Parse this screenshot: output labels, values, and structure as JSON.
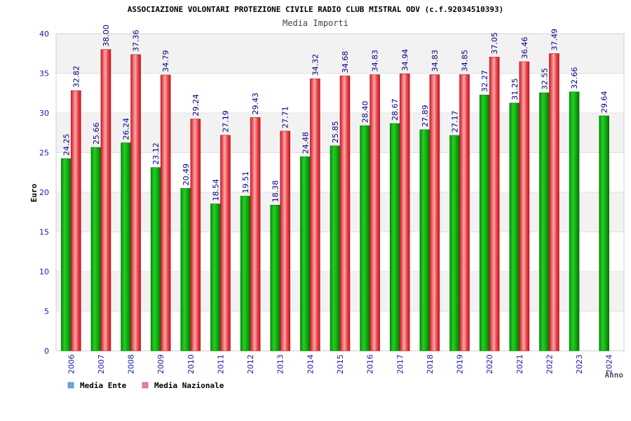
{
  "chart_data": {
    "type": "bar",
    "title": "ASSOCIAZIONE VOLONTARI PROTEZIONE CIVILE RADIO CLUB MISTRAL ODV (c.f.92034510393)",
    "subtitle": "Media Importi",
    "xlabel": "Anno",
    "ylabel": "Euro",
    "ylim": [
      0,
      40
    ],
    "yticks": [
      "0",
      "5",
      "10",
      "15",
      "20",
      "25",
      "30",
      "35",
      "40"
    ],
    "categories": [
      "2006",
      "2007",
      "2008",
      "2009",
      "2010",
      "2011",
      "2012",
      "2013",
      "2014",
      "2015",
      "2016",
      "2017",
      "2018",
      "2019",
      "2020",
      "2021",
      "2022",
      "2023",
      "2024"
    ],
    "series": [
      {
        "name": "Media Ente",
        "values": [
          24.25,
          25.66,
          26.24,
          23.12,
          20.49,
          18.54,
          19.51,
          18.38,
          24.48,
          25.85,
          28.4,
          28.67,
          27.89,
          27.17,
          32.27,
          31.25,
          32.55,
          32.66,
          29.64
        ],
        "labels": [
          "24.25",
          "25.66",
          "26.24",
          "23.12",
          "20.49",
          "18.54",
          "19.51",
          "18.38",
          "24.48",
          "25.85",
          "28.40",
          "28.67",
          "27.89",
          "27.17",
          "32.27",
          "31.25",
          "32.55",
          "32.66",
          "29.64"
        ]
      },
      {
        "name": "Media Nazionale",
        "values": [
          32.82,
          38.0,
          37.36,
          34.79,
          29.24,
          27.19,
          29.43,
          27.71,
          34.32,
          34.68,
          34.83,
          34.94,
          34.83,
          34.85,
          37.05,
          36.46,
          37.49,
          null,
          null
        ],
        "labels": [
          "32.82",
          "38.00",
          "37.36",
          "34.79",
          "29.24",
          "27.19",
          "29.43",
          "27.71",
          "34.32",
          "34.68",
          "34.83",
          "34.94",
          "34.83",
          "34.85",
          "37.05",
          "36.46",
          "37.49",
          null,
          null
        ]
      }
    ],
    "legend": [
      {
        "label": "Media Ente",
        "color": "#6aa6e8"
      },
      {
        "label": "Media Nazionale",
        "color": "#e67fb0"
      }
    ],
    "legend_position": "bottom-left",
    "grid": true,
    "colors": {
      "ente": "#12b512",
      "nazionale": "#ec2c34",
      "axis_text": "#1a1aa8",
      "band": "#f2f2f2"
    }
  }
}
